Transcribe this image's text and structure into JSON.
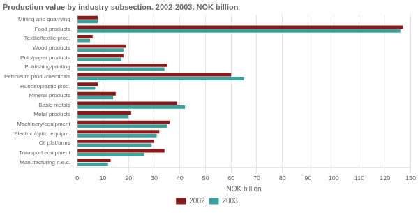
{
  "chart_data": {
    "type": "bar",
    "orientation": "horizontal",
    "title": "Production value by industry subsection. 2002-2003. NOK billion",
    "categories": [
      "Mining and quarrying",
      "Food products",
      "Textile/textile prod.",
      "Wood products",
      "Pulp/paper products",
      "Publishing/printing",
      "Petroleum prod./chemicals",
      "Rubber/plastic prod.",
      "Mineral products",
      "Basic metals",
      "Metal products",
      "Machinery/equipment",
      "Electric./optic. equipm.",
      "Oil platforms",
      "Transport equipment",
      "Manufacturing n.e.c."
    ],
    "series": [
      {
        "name": "2002",
        "color": "#8B1A1A",
        "values": [
          8,
          127,
          6,
          19,
          18,
          35,
          60,
          8,
          15,
          39,
          21,
          36,
          32,
          30,
          34,
          13
        ]
      },
      {
        "name": "2003",
        "color": "#3AA39C",
        "values": [
          8,
          126,
          5,
          18,
          17,
          34,
          65,
          7,
          14,
          42,
          20,
          35,
          31,
          29,
          26,
          12
        ]
      }
    ],
    "xlabel": "NOK billion",
    "xlim": [
      0,
      130
    ],
    "xticks": [
      0,
      10,
      20,
      30,
      40,
      50,
      60,
      70,
      80,
      90,
      100,
      110,
      120,
      130
    ],
    "grid": true,
    "legend": "bottom"
  }
}
